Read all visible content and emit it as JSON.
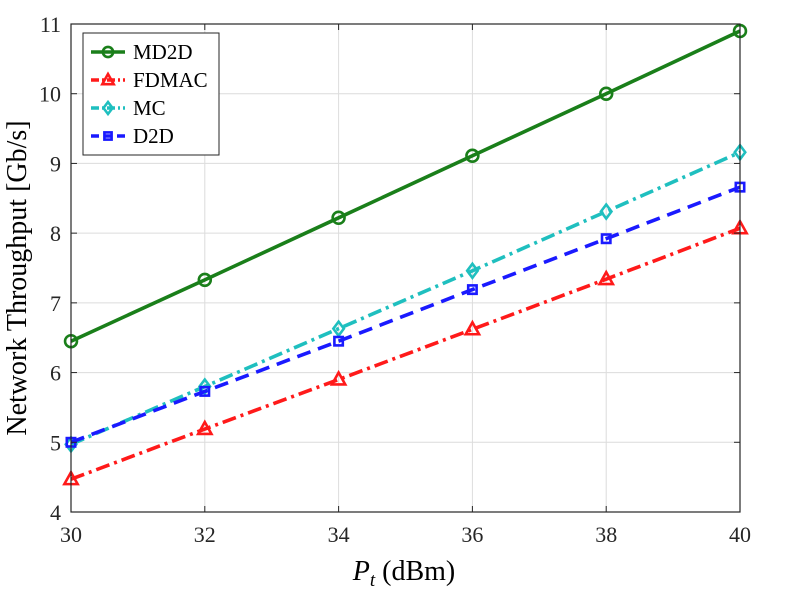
{
  "chart_data": {
    "type": "line",
    "title": "",
    "xlabel_var": "P",
    "xlabel_sub": "t",
    "xlabel_unit": " (dBm)",
    "ylabel": "Network Throughput [Gb/s]",
    "xlim": [
      30,
      40
    ],
    "ylim": [
      4,
      11
    ],
    "xticks": [
      30,
      32,
      34,
      36,
      38,
      40
    ],
    "yticks": [
      4,
      5,
      6,
      7,
      8,
      9,
      10,
      11
    ],
    "grid": true,
    "legend_position": "top-left",
    "x": [
      30,
      32,
      34,
      36,
      38,
      40
    ],
    "series": [
      {
        "name": "MD2D",
        "color": "#1a7f1a",
        "marker": "circle",
        "dash": "",
        "values": [
          6.45,
          7.33,
          8.22,
          9.11,
          10.0,
          10.9
        ]
      },
      {
        "name": "FDMAC",
        "color": "#ff1a1a",
        "marker": "triangle",
        "dash": "14 5 3 5",
        "values": [
          4.47,
          5.19,
          5.9,
          6.62,
          7.34,
          8.07
        ]
      },
      {
        "name": "MC",
        "color": "#1fbfbf",
        "marker": "diamond",
        "dash": "14 5 3 5",
        "values": [
          4.97,
          5.8,
          6.63,
          7.46,
          8.31,
          9.16
        ]
      },
      {
        "name": "D2D",
        "color": "#1a1aff",
        "marker": "square",
        "dash": "14 8",
        "values": [
          5.0,
          5.73,
          6.45,
          7.19,
          7.92,
          8.66
        ]
      }
    ]
  }
}
